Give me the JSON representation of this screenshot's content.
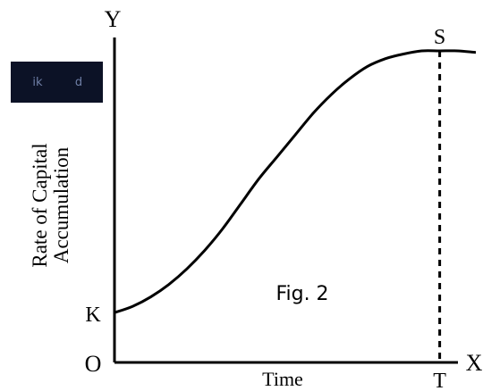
{
  "chart_data": {
    "type": "line",
    "title": "",
    "xlabel": "Time",
    "ylabel_lines": [
      "Rate of Capital",
      "Accumulation"
    ],
    "x_axis_letter": "X",
    "y_axis_letter": "Y",
    "origin_label": "O",
    "figure_caption": "Fig. 2",
    "grid": false,
    "xlim": [
      0,
      1
    ],
    "ylim": [
      0,
      1
    ],
    "series": [
      {
        "x": [
          0,
          0.05,
          0.1,
          0.15,
          0.2,
          0.25,
          0.3,
          0.35,
          0.4,
          0.45,
          0.5,
          0.55,
          0.6,
          0.65,
          0.7,
          0.75,
          0.8,
          0.85,
          0.9,
          0.95,
          1.0
        ],
        "values": [
          0.16,
          0.18,
          0.21,
          0.25,
          0.3,
          0.36,
          0.43,
          0.51,
          0.59,
          0.66,
          0.73,
          0.8,
          0.86,
          0.91,
          0.95,
          0.975,
          0.99,
          1.0,
          1.0,
          1.0,
          0.995
        ]
      }
    ],
    "annotations": [
      {
        "label": "K",
        "x": 0,
        "y": 0.16,
        "note": "curve intercept on Y axis"
      },
      {
        "label": "S",
        "x": 0.9,
        "y": 1.0,
        "note": "peak of curve"
      },
      {
        "label": "T",
        "x": 0.9,
        "y": 0,
        "note": "foot of dashed line on X axis"
      }
    ],
    "reference_lines": [
      {
        "style": "dashed",
        "from": {
          "x": 0.9,
          "y": 1.0
        },
        "to": {
          "x": 0.9,
          "y": 0
        }
      }
    ],
    "badge": {
      "glyphs": [
        "ik",
        "d"
      ],
      "background": "#0c1226"
    }
  }
}
